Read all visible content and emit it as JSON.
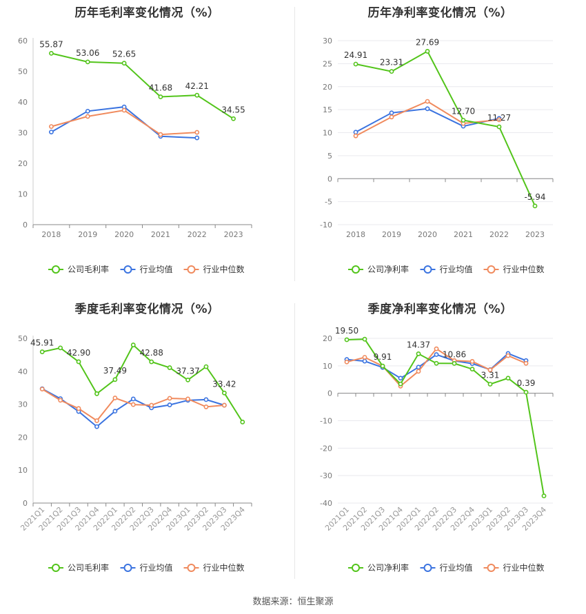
{
  "source_text": "数据来源：恒生聚源",
  "legend_labels": [
    "公司毛利率",
    "行业均值",
    "行业中位数"
  ],
  "chart_data": [
    {
      "type": "line",
      "title": "历年毛利率变化情况（%）",
      "categories": [
        "2018",
        "2019",
        "2020",
        "2021",
        "2022",
        "2023"
      ],
      "yticks": [
        0,
        10,
        20,
        30,
        40,
        50,
        60
      ],
      "ylim": [
        0,
        60
      ],
      "grid": false,
      "legend": "bottom-center",
      "series": [
        {
          "name": "公司毛利率",
          "color": "#52c41a",
          "values": [
            55.87,
            53.06,
            52.65,
            41.68,
            42.21,
            34.55
          ],
          "labels": [
            "55.87",
            "53.06",
            "52.65",
            "41.68",
            "42.21",
            "34.55"
          ]
        },
        {
          "name": "行业均值",
          "color": "#3a73e0",
          "values": [
            30.2,
            37.0,
            38.4,
            28.8,
            28.3,
            null
          ]
        },
        {
          "name": "行业中位数",
          "color": "#f08a5d",
          "values": [
            32.0,
            35.3,
            37.3,
            29.4,
            30.1,
            null
          ]
        }
      ]
    },
    {
      "type": "line",
      "title": "历年净利率变化情况（%）",
      "categories": [
        "2018",
        "2019",
        "2020",
        "2021",
        "2022",
        "2023"
      ],
      "yticks": [
        -10,
        -5,
        0,
        5,
        10,
        15,
        20,
        25,
        30
      ],
      "ylim": [
        -10,
        30
      ],
      "grid": true,
      "legend": "bottom-center",
      "series": [
        {
          "name": "公司净利率",
          "color": "#52c41a",
          "values": [
            24.91,
            23.31,
            27.69,
            12.7,
            11.27,
            -5.94
          ],
          "labels": [
            "24.91",
            "23.31",
            "27.69",
            "12.70",
            "11.27",
            "-5.94"
          ]
        },
        {
          "name": "行业均值",
          "color": "#3a73e0",
          "values": [
            10.1,
            14.3,
            15.2,
            11.4,
            13.1,
            null
          ]
        },
        {
          "name": "行业中位数",
          "color": "#f08a5d",
          "values": [
            9.3,
            13.4,
            16.8,
            12.0,
            12.8,
            null
          ]
        }
      ]
    },
    {
      "type": "line",
      "title": "季度毛利率变化情况（%）",
      "categories": [
        "2021Q1",
        "2021Q2",
        "2021Q3",
        "2021Q4",
        "2022Q1",
        "2022Q2",
        "2022Q3",
        "2022Q4",
        "2023Q1",
        "2023Q2",
        "2023Q3",
        "2023Q4"
      ],
      "yticks": [
        0,
        10,
        20,
        30,
        40,
        50
      ],
      "ylim": [
        0,
        50
      ],
      "grid": false,
      "legend": "bottom-center",
      "series": [
        {
          "name": "公司毛利率",
          "color": "#52c41a",
          "values": [
            45.91,
            47.1,
            42.9,
            33.2,
            37.49,
            48.0,
            42.88,
            41.1,
            37.37,
            41.4,
            33.42,
            24.6
          ],
          "labels": [
            "45.91",
            "",
            "42.90",
            "",
            "37.49",
            "",
            "42.88",
            "",
            "37.37",
            "",
            "33.42",
            ""
          ]
        },
        {
          "name": "行业均值",
          "color": "#3a73e0",
          "values": [
            34.7,
            31.7,
            27.8,
            23.2,
            27.9,
            31.6,
            28.9,
            29.8,
            31.2,
            31.4,
            29.7,
            null
          ]
        },
        {
          "name": "行业中位数",
          "color": "#f08a5d",
          "values": [
            34.6,
            31.2,
            28.7,
            25.0,
            31.9,
            29.9,
            29.7,
            31.8,
            31.6,
            29.2,
            29.7,
            null
          ]
        }
      ]
    },
    {
      "type": "line",
      "title": "季度净利率变化情况（%）",
      "categories": [
        "2021Q1",
        "2021Q2",
        "2021Q3",
        "2021Q4",
        "2022Q1",
        "2022Q2",
        "2022Q3",
        "2022Q4",
        "2023Q1",
        "2023Q2",
        "2023Q3",
        "2023Q4"
      ],
      "yticks": [
        -40,
        -30,
        -20,
        -10,
        0,
        10,
        20
      ],
      "ylim": [
        -40,
        20
      ],
      "grid": true,
      "legend": "bottom-center",
      "series": [
        {
          "name": "公司净利率",
          "color": "#52c41a",
          "values": [
            19.5,
            19.7,
            9.91,
            3.4,
            14.37,
            10.9,
            10.86,
            8.8,
            3.31,
            5.5,
            0.39,
            -37.4
          ],
          "labels": [
            "19.50",
            "",
            "9.91",
            "",
            "14.37",
            "",
            "10.86",
            "",
            "3.31",
            "",
            "0.39",
            ""
          ]
        },
        {
          "name": "行业均值",
          "color": "#3a73e0",
          "values": [
            12.3,
            11.7,
            9.4,
            5.5,
            9.5,
            14.1,
            11.8,
            10.8,
            8.6,
            14.5,
            11.9,
            null
          ]
        },
        {
          "name": "行业中位数",
          "color": "#f08a5d",
          "values": [
            11.4,
            13.1,
            9.9,
            2.6,
            8.0,
            16.2,
            11.9,
            11.6,
            8.5,
            13.7,
            10.9,
            null
          ]
        }
      ]
    }
  ]
}
